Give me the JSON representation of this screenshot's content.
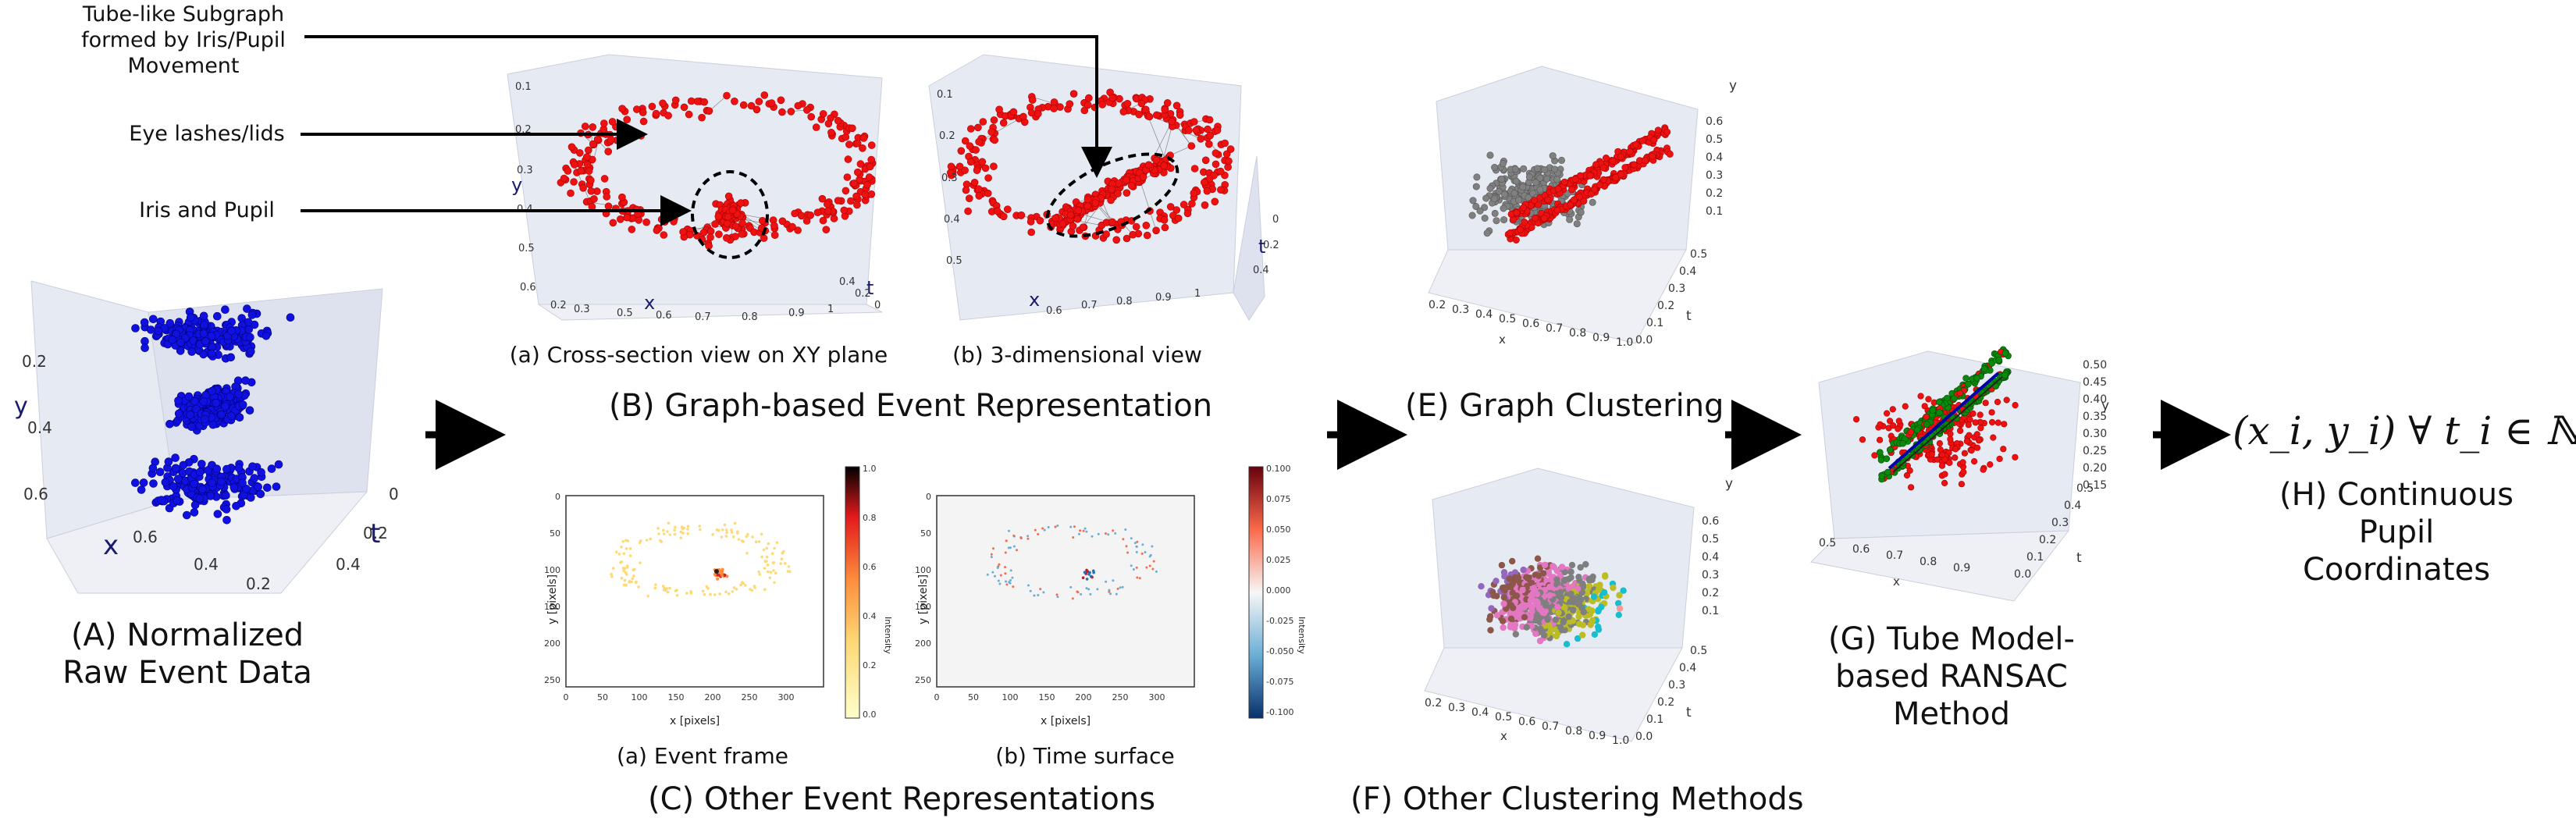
{
  "annotations": {
    "tube": "Tube-like Subgraph formed by Iris/Pupil Movement",
    "lashes": "Eye lashes/lids",
    "iris": "Iris and Pupil"
  },
  "captions": {
    "A": "(A) Normalized Raw Event Data",
    "B": "(B) Graph-based Event Representation",
    "B_a": "(a) Cross-section view on XY plane",
    "B_b": "(b) 3-dimensional view",
    "C": "(C) Other Event Representations",
    "C_a": "(a) Event frame",
    "C_b": "(b) Time surface",
    "E": "(E) Graph Clustering",
    "F": "(F) Other Clustering Methods",
    "G": "(G) Tube Model-based RANSAC Method",
    "H_formula": "(x_i, y_i) ∀ t_i ∈ ℕ",
    "H": "(H) Continuous Pupil Coordinates"
  },
  "axis_labels": {
    "x": "x",
    "y": "y",
    "t": "t",
    "x_pixels": "x [pixels]",
    "y_pixels": "y [pixels]",
    "intensity": "Intensity"
  },
  "ticks": {
    "A_y": [
      "0.2",
      "0.4",
      "0.6"
    ],
    "A_x": [
      "0.6",
      "0.4",
      "0.2"
    ],
    "A_t": [
      "0",
      "0.2",
      "0.4"
    ],
    "B_x": [
      "0.2",
      "0.3",
      "0.5",
      "0.6",
      "0.7",
      "0.8",
      "0.9",
      "1"
    ],
    "B_t": [
      "0.4",
      "0.2",
      "0"
    ],
    "B_y": [
      "0.1",
      "0.2",
      "0.3",
      "0.4",
      "0.5",
      "0.6"
    ],
    "frame_x": [
      "0",
      "50",
      "100",
      "150",
      "200",
      "250",
      "300"
    ],
    "frame_y": [
      "0",
      "50",
      "100",
      "150",
      "200",
      "250"
    ],
    "cbar_a": [
      "1.0",
      "0.8",
      "0.6",
      "0.4",
      "0.2",
      "0.0"
    ],
    "cbar_b": [
      "0.100",
      "0.075",
      "0.050",
      "0.025",
      "0.000",
      "-0.025",
      "-0.050",
      "-0.075",
      "-0.100"
    ],
    "EF_x": [
      "0.2",
      "0.3",
      "0.4",
      "0.5",
      "0.6",
      "0.7",
      "0.8",
      "0.9",
      "1.0"
    ],
    "EF_t": [
      "0.0",
      "0.1",
      "0.2",
      "0.3",
      "0.4",
      "0.5"
    ],
    "EF_y": [
      "0.6",
      "0.5",
      "0.4",
      "0.3",
      "0.2",
      "0.1"
    ],
    "G_x": [
      "0.5",
      "0.6",
      "0.7",
      "0.8",
      "0.9"
    ],
    "G_t": [
      "0.0",
      "0.1",
      "0.2",
      "0.3",
      "0.4",
      "0.5"
    ],
    "G_y": [
      "0.50",
      "0.45",
      "0.40",
      "0.35",
      "0.30",
      "0.25",
      "0.20",
      "0.15"
    ]
  },
  "colors": {
    "raw": "#1010e0",
    "graph": "#ee1111",
    "gray": "#808080",
    "green": "#0a8a0a",
    "line": "#0000aa",
    "pane": "#e6eaf3",
    "arrow": "#000000"
  }
}
